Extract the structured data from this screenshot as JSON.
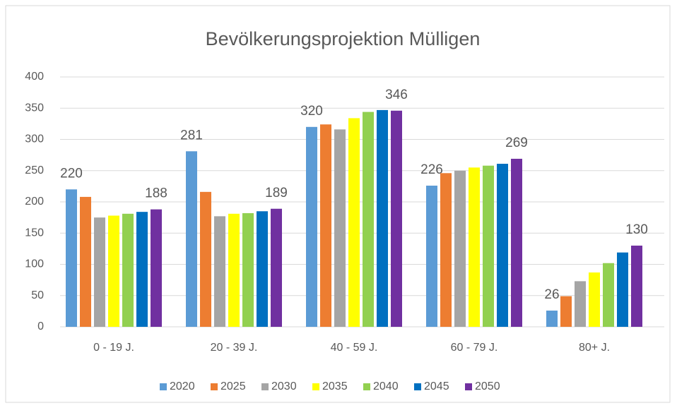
{
  "chart_data": {
    "type": "bar",
    "title": "Bevölkerungsprojektion Mülligen",
    "categories": [
      "0 - 19 J.",
      "20 - 39 J.",
      "40 - 59 J.",
      "60 - 79 J.",
      "80+ J."
    ],
    "series": [
      {
        "name": "2020",
        "color": "#5b9bd5",
        "values": [
          220,
          281,
          320,
          226,
          26
        ],
        "data_labels": true
      },
      {
        "name": "2025",
        "color": "#ed7d31",
        "values": [
          208,
          216,
          324,
          246,
          49
        ],
        "data_labels": false
      },
      {
        "name": "2030",
        "color": "#a5a5a5",
        "values": [
          175,
          177,
          316,
          250,
          73
        ],
        "data_labels": false
      },
      {
        "name": "2035",
        "color": "#ffff00",
        "values": [
          178,
          181,
          334,
          255,
          87
        ],
        "data_labels": false
      },
      {
        "name": "2040",
        "color": "#92d050",
        "values": [
          181,
          182,
          344,
          258,
          102
        ],
        "data_labels": false
      },
      {
        "name": "2045",
        "color": "#0070c0",
        "values": [
          184,
          185,
          347,
          261,
          119
        ],
        "data_labels": false
      },
      {
        "name": "2050",
        "color": "#7030a0",
        "values": [
          188,
          189,
          346,
          269,
          130
        ],
        "data_labels": true
      }
    ],
    "ylim": [
      0,
      400
    ],
    "yticks": [
      0,
      50,
      100,
      150,
      200,
      250,
      300,
      350,
      400
    ],
    "grid": true,
    "legend": "bottom"
  }
}
